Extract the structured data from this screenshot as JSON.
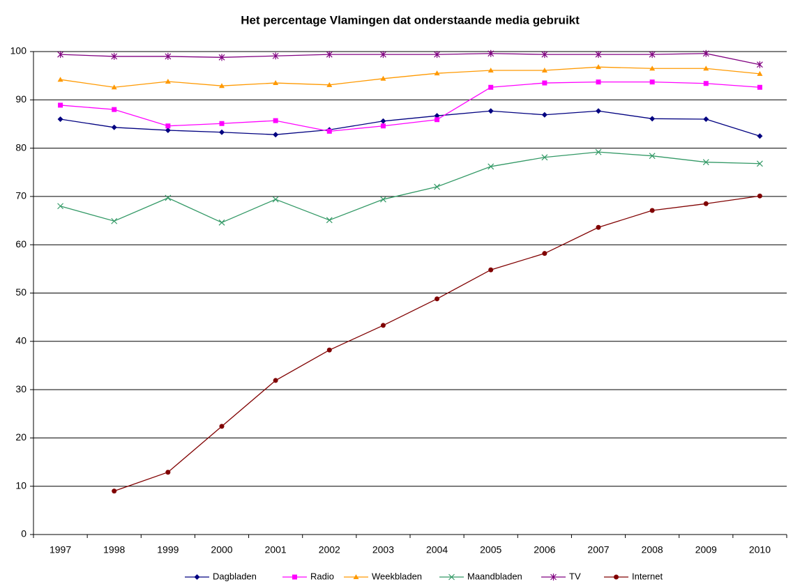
{
  "chart_data": {
    "type": "line",
    "title": "Het percentage Vlamingen dat onderstaande media gebruikt",
    "categories": [
      "1997",
      "1998",
      "1999",
      "2000",
      "2001",
      "2002",
      "2003",
      "2004",
      "2005",
      "2006",
      "2007",
      "2008",
      "2009",
      "2010"
    ],
    "ylim": [
      0,
      100
    ],
    "yticks": [
      0,
      10,
      20,
      30,
      40,
      50,
      60,
      70,
      80,
      90,
      100
    ],
    "grid": true,
    "legend": "bottom",
    "series": [
      {
        "name": "Dagbladen",
        "color": "#000080",
        "marker": "diamond",
        "values": [
          86.0,
          84.3,
          83.7,
          83.3,
          82.8,
          83.8,
          85.6,
          86.7,
          87.7,
          86.9,
          87.7,
          86.1,
          86.0,
          82.5
        ]
      },
      {
        "name": "Radio",
        "color": "#ff00ff",
        "marker": "square",
        "values": [
          88.9,
          88.0,
          84.6,
          85.1,
          85.7,
          83.5,
          84.6,
          85.9,
          92.6,
          93.5,
          93.7,
          93.7,
          93.4,
          92.6
        ]
      },
      {
        "name": "Weekbladen",
        "color": "#ff9900",
        "marker": "triangle",
        "values": [
          94.2,
          92.6,
          93.8,
          92.9,
          93.5,
          93.1,
          94.4,
          95.5,
          96.1,
          96.1,
          96.8,
          96.5,
          96.5,
          95.4
        ]
      },
      {
        "name": "Maandbladen",
        "color": "#339966",
        "marker": "x",
        "values": [
          68.0,
          64.9,
          69.7,
          64.6,
          69.4,
          65.1,
          69.4,
          72.0,
          76.2,
          78.1,
          79.2,
          78.4,
          77.1,
          76.8
        ]
      },
      {
        "name": "TV",
        "color": "#800080",
        "marker": "star",
        "values": [
          99.4,
          99.0,
          99.0,
          98.8,
          99.1,
          99.4,
          99.4,
          99.4,
          99.6,
          99.4,
          99.4,
          99.4,
          99.6,
          97.3
        ]
      },
      {
        "name": "Internet",
        "color": "#800000",
        "marker": "circle",
        "values": [
          null,
          9.0,
          12.9,
          22.4,
          31.9,
          38.2,
          43.3,
          48.8,
          54.8,
          58.2,
          63.6,
          67.1,
          68.5,
          70.1
        ]
      }
    ]
  }
}
